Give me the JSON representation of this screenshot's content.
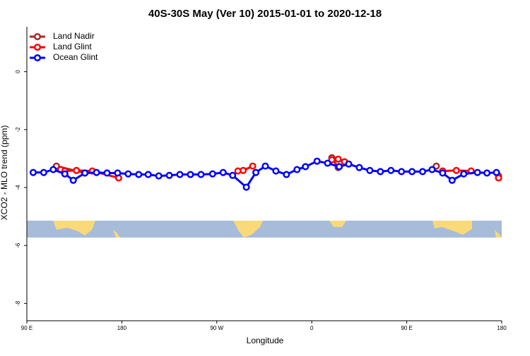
{
  "chart_data": {
    "type": "line",
    "title": "40S-30S May (Ver 10)   2015-01-01 to 2020-12-18",
    "x_label": "Longitude",
    "y_label": "XCO2 - MLO trend (ppm)",
    "xlim": [
      90,
      540
    ],
    "ylim": [
      -8.6,
      1.55
    ],
    "xticks": [
      {
        "value": 90,
        "label": "90 E"
      },
      {
        "value": 180,
        "label": "180"
      },
      {
        "value": 270,
        "label": "90 W"
      },
      {
        "value": 360,
        "label": "0"
      },
      {
        "value": 450,
        "label": "90 E"
      },
      {
        "value": 540,
        "label": "180"
      }
    ],
    "yticks": [
      -8,
      -6,
      -4,
      -2,
      0
    ],
    "legend": "top-left",
    "series": [
      {
        "name": "Land Nadir",
        "color": "#a52a2a",
        "x": [
          118,
          145,
          null,
          379,
          385,
          null,
          478,
          null,
          537
        ],
        "values": [
          -3.26,
          -3.5,
          null,
          -2.97,
          -3.31,
          null,
          -3.26,
          null,
          -3.6
        ]
      },
      {
        "name": "Land Glint",
        "color": "#ff0000",
        "x": [
          122,
          126,
          137,
          152,
          177,
          null,
          290,
          295,
          304,
          null,
          379,
          385,
          391,
          null,
          484,
          497,
          511,
          null,
          537
        ],
        "values": [
          -3.38,
          -3.43,
          -3.41,
          -3.43,
          -3.67,
          null,
          -3.43,
          -3.41,
          -3.26,
          null,
          -3.04,
          -3.02,
          -3.11,
          null,
          -3.43,
          -3.41,
          -3.43,
          null,
          -3.67
        ]
      },
      {
        "name": "Ocean Glint",
        "color": "#0000ff",
        "x": [
          96,
          106,
          115,
          126,
          134,
          145,
          156,
          166,
          176,
          186,
          196,
          205,
          215,
          225,
          235,
          245,
          255,
          266,
          276,
          285,
          298,
          307,
          316,
          326,
          336,
          346,
          354,
          365,
          375,
          386,
          395,
          405,
          415,
          425,
          435,
          445,
          455,
          465,
          474,
          484,
          493,
          504,
          517,
          526,
          535
        ],
        "values": [
          -3.48,
          -3.48,
          -3.38,
          -3.53,
          -3.75,
          -3.5,
          -3.48,
          -3.5,
          -3.5,
          -3.53,
          -3.55,
          -3.55,
          -3.6,
          -3.58,
          -3.55,
          -3.55,
          -3.55,
          -3.53,
          -3.48,
          -3.58,
          -3.99,
          -3.48,
          -3.26,
          -3.43,
          -3.55,
          -3.38,
          -3.28,
          -3.09,
          -3.16,
          -3.28,
          -3.19,
          -3.31,
          -3.41,
          -3.45,
          -3.41,
          -3.45,
          -3.45,
          -3.45,
          -3.38,
          -3.5,
          -3.75,
          -3.53,
          -3.48,
          -3.5,
          -3.48
        ]
      }
    ]
  }
}
